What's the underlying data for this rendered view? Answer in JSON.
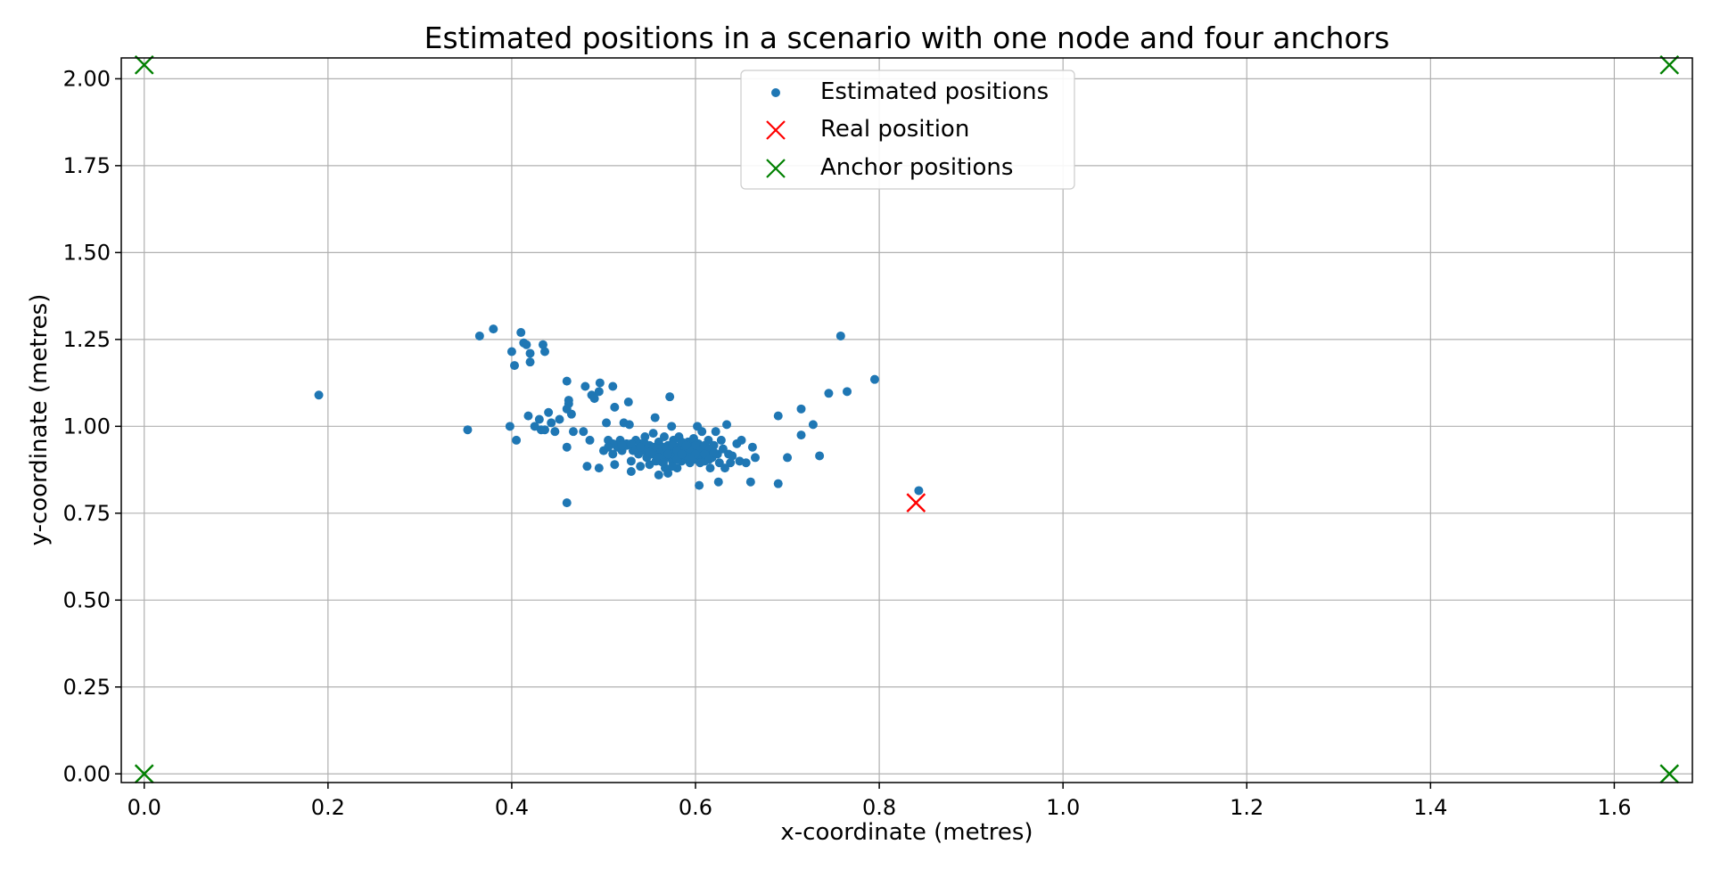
{
  "chart_data": {
    "type": "scatter",
    "title": "Estimated positions in a scenario with one node and four anchors",
    "xlabel": "x-coordinate (metres)",
    "ylabel": "y-coordinate (metres)",
    "xlim": [
      -0.025,
      1.685
    ],
    "ylim": [
      -0.025,
      2.06
    ],
    "xticks": [
      0.0,
      0.2,
      0.4,
      0.6,
      0.8,
      1.0,
      1.2,
      1.4,
      1.6
    ],
    "xtick_labels": [
      "0.0",
      "0.2",
      "0.4",
      "0.6",
      "0.8",
      "1.0",
      "1.2",
      "1.4",
      "1.6"
    ],
    "yticks": [
      0.0,
      0.25,
      0.5,
      0.75,
      1.0,
      1.25,
      1.5,
      1.75,
      2.0
    ],
    "ytick_labels": [
      "0.00",
      "0.25",
      "0.50",
      "0.75",
      "1.00",
      "1.25",
      "1.50",
      "1.75",
      "2.00"
    ],
    "grid": true,
    "legend_position": "top-center",
    "series": [
      {
        "name": "Estimated positions",
        "marker": "circle",
        "color": "#1f77b4",
        "points": [
          [
            0.19,
            1.09
          ],
          [
            0.352,
            0.99
          ],
          [
            0.365,
            1.26
          ],
          [
            0.38,
            1.28
          ],
          [
            0.398,
            1.0
          ],
          [
            0.4,
            1.215
          ],
          [
            0.403,
            1.175
          ],
          [
            0.405,
            0.96
          ],
          [
            0.41,
            1.27
          ],
          [
            0.413,
            1.24
          ],
          [
            0.416,
            1.235
          ],
          [
            0.418,
            1.03
          ],
          [
            0.42,
            1.21
          ],
          [
            0.42,
            1.185
          ],
          [
            0.425,
            1.0
          ],
          [
            0.43,
            1.02
          ],
          [
            0.432,
            0.99
          ],
          [
            0.434,
            1.235
          ],
          [
            0.436,
            1.215
          ],
          [
            0.436,
            0.99
          ],
          [
            0.44,
            1.04
          ],
          [
            0.443,
            1.01
          ],
          [
            0.447,
            0.985
          ],
          [
            0.452,
            1.02
          ],
          [
            0.46,
            1.13
          ],
          [
            0.46,
            1.05
          ],
          [
            0.462,
            1.065
          ],
          [
            0.462,
            1.075
          ],
          [
            0.46,
            0.94
          ],
          [
            0.46,
            0.78
          ],
          [
            0.465,
            1.035
          ],
          [
            0.467,
            0.985
          ],
          [
            0.478,
            0.985
          ],
          [
            0.48,
            1.115
          ],
          [
            0.482,
            0.885
          ],
          [
            0.485,
            0.96
          ],
          [
            0.487,
            1.09
          ],
          [
            0.49,
            1.08
          ],
          [
            0.495,
            1.1
          ],
          [
            0.496,
            1.125
          ],
          [
            0.495,
            0.88
          ],
          [
            0.5,
            0.93
          ],
          [
            0.503,
            1.01
          ],
          [
            0.505,
            0.96
          ],
          [
            0.51,
            1.115
          ],
          [
            0.51,
            0.92
          ],
          [
            0.512,
            1.055
          ],
          [
            0.512,
            0.89
          ],
          [
            0.515,
            0.94
          ],
          [
            0.518,
            0.96
          ],
          [
            0.52,
            0.93
          ],
          [
            0.522,
            1.01
          ],
          [
            0.525,
            0.95
          ],
          [
            0.527,
            1.07
          ],
          [
            0.528,
            1.005
          ],
          [
            0.53,
            0.9
          ],
          [
            0.53,
            0.87
          ],
          [
            0.532,
            0.93
          ],
          [
            0.535,
            0.96
          ],
          [
            0.538,
            0.92
          ],
          [
            0.54,
            0.885
          ],
          [
            0.54,
            0.95
          ],
          [
            0.543,
            0.93
          ],
          [
            0.545,
            0.97
          ],
          [
            0.547,
            0.91
          ],
          [
            0.55,
            0.945
          ],
          [
            0.55,
            0.89
          ],
          [
            0.552,
            0.92
          ],
          [
            0.554,
            0.98
          ],
          [
            0.556,
            1.025
          ],
          [
            0.557,
            0.9
          ],
          [
            0.558,
            0.93
          ],
          [
            0.56,
            0.955
          ],
          [
            0.56,
            0.86
          ],
          [
            0.562,
            0.9
          ],
          [
            0.564,
            0.94
          ],
          [
            0.565,
            0.92
          ],
          [
            0.566,
            0.97
          ],
          [
            0.567,
            0.88
          ],
          [
            0.568,
            0.91
          ],
          [
            0.57,
            0.945
          ],
          [
            0.57,
            0.865
          ],
          [
            0.572,
            1.085
          ],
          [
            0.573,
            0.93
          ],
          [
            0.574,
            1.0
          ],
          [
            0.575,
            0.9
          ],
          [
            0.576,
            0.96
          ],
          [
            0.578,
            0.915
          ],
          [
            0.58,
            0.94
          ],
          [
            0.58,
            0.88
          ],
          [
            0.582,
            0.97
          ],
          [
            0.584,
            0.925
          ],
          [
            0.585,
            0.9
          ],
          [
            0.587,
            0.945
          ],
          [
            0.588,
            0.91
          ],
          [
            0.59,
            0.93
          ],
          [
            0.592,
            0.955
          ],
          [
            0.594,
            0.895
          ],
          [
            0.595,
            0.92
          ],
          [
            0.597,
            0.94
          ],
          [
            0.598,
            0.965
          ],
          [
            0.6,
            0.905
          ],
          [
            0.6,
            0.93
          ],
          [
            0.602,
            1.0
          ],
          [
            0.603,
            0.95
          ],
          [
            0.604,
            0.83
          ],
          [
            0.605,
            0.915
          ],
          [
            0.607,
            0.985
          ],
          [
            0.608,
            0.94
          ],
          [
            0.61,
            0.9
          ],
          [
            0.612,
            0.925
          ],
          [
            0.614,
            0.96
          ],
          [
            0.616,
            0.88
          ],
          [
            0.618,
            0.91
          ],
          [
            0.62,
            0.945
          ],
          [
            0.622,
            0.985
          ],
          [
            0.624,
            0.92
          ],
          [
            0.625,
            0.84
          ],
          [
            0.626,
            0.895
          ],
          [
            0.628,
            0.96
          ],
          [
            0.63,
            0.935
          ],
          [
            0.632,
            0.88
          ],
          [
            0.634,
            1.005
          ],
          [
            0.636,
            0.92
          ],
          [
            0.638,
            0.895
          ],
          [
            0.64,
            0.915
          ],
          [
            0.645,
            0.95
          ],
          [
            0.648,
            0.9
          ],
          [
            0.65,
            0.96
          ],
          [
            0.655,
            0.895
          ],
          [
            0.66,
            0.84
          ],
          [
            0.662,
            0.94
          ],
          [
            0.665,
            0.91
          ],
          [
            0.69,
            1.03
          ],
          [
            0.69,
            0.835
          ],
          [
            0.7,
            0.91
          ],
          [
            0.715,
            1.05
          ],
          [
            0.715,
            0.975
          ],
          [
            0.728,
            1.005
          ],
          [
            0.735,
            0.915
          ],
          [
            0.745,
            1.095
          ],
          [
            0.758,
            1.26
          ],
          [
            0.765,
            1.1
          ],
          [
            0.795,
            1.135
          ],
          [
            0.843,
            0.815
          ],
          [
            0.525,
            0.945
          ],
          [
            0.535,
            0.935
          ],
          [
            0.545,
            0.95
          ],
          [
            0.548,
            0.935
          ],
          [
            0.555,
            0.94
          ],
          [
            0.562,
            0.925
          ],
          [
            0.568,
            0.935
          ],
          [
            0.575,
            0.945
          ],
          [
            0.58,
            0.93
          ],
          [
            0.585,
            0.955
          ],
          [
            0.59,
            0.915
          ],
          [
            0.595,
            0.935
          ],
          [
            0.6,
            0.945
          ],
          [
            0.605,
            0.93
          ],
          [
            0.61,
            0.945
          ],
          [
            0.615,
            0.935
          ],
          [
            0.62,
            0.925
          ],
          [
            0.56,
            0.91
          ],
          [
            0.57,
            0.92
          ],
          [
            0.58,
            0.905
          ],
          [
            0.59,
            0.945
          ],
          [
            0.6,
            0.92
          ],
          [
            0.61,
            0.92
          ],
          [
            0.565,
            0.895
          ],
          [
            0.575,
            0.885
          ],
          [
            0.585,
            0.92
          ],
          [
            0.595,
            0.905
          ],
          [
            0.605,
            0.895
          ],
          [
            0.615,
            0.905
          ],
          [
            0.55,
            0.925
          ],
          [
            0.54,
            0.94
          ],
          [
            0.53,
            0.95
          ],
          [
            0.52,
            0.945
          ],
          [
            0.51,
            0.95
          ],
          [
            0.505,
            0.94
          ]
        ]
      },
      {
        "name": "Real position",
        "marker": "x",
        "color": "#ff0000",
        "points": [
          [
            0.84,
            0.78
          ]
        ]
      },
      {
        "name": "Anchor positions",
        "marker": "x",
        "color": "#008000",
        "points": [
          [
            0.0,
            2.04
          ],
          [
            1.66,
            2.04
          ],
          [
            0.0,
            0.0
          ],
          [
            1.66,
            0.0
          ]
        ]
      }
    ]
  }
}
